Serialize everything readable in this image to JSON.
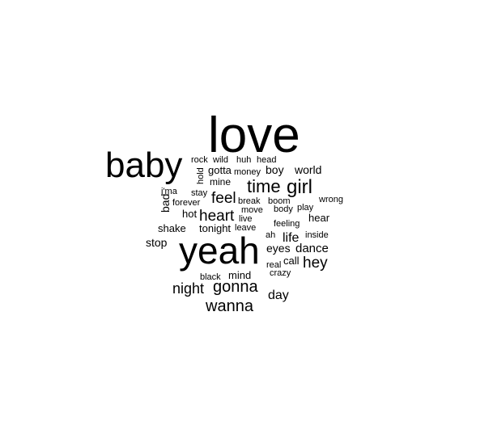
{
  "word_cloud": {
    "text_color": "#000000",
    "background": "#ffffff",
    "words": [
      {
        "text": "love",
        "weight": 10
      },
      {
        "text": "yeah",
        "weight": 8.5
      },
      {
        "text": "baby",
        "weight": 8
      },
      {
        "text": "girl",
        "weight": 4
      },
      {
        "text": "time",
        "weight": 4
      },
      {
        "text": "wanna",
        "weight": 3.3
      },
      {
        "text": "gonna",
        "weight": 3.3
      },
      {
        "text": "hey",
        "weight": 3
      },
      {
        "text": "night",
        "weight": 3
      },
      {
        "text": "heart",
        "weight": 3
      },
      {
        "text": "feel",
        "weight": 3
      },
      {
        "text": "life",
        "weight": 2.6
      },
      {
        "text": "day",
        "weight": 2.6
      },
      {
        "text": "dance",
        "weight": 2.4
      },
      {
        "text": "world",
        "weight": 2.2
      },
      {
        "text": "boy",
        "weight": 2.2
      },
      {
        "text": "bad",
        "weight": 2.2
      },
      {
        "text": "eyes",
        "weight": 2.1
      },
      {
        "text": "stop",
        "weight": 2.1
      },
      {
        "text": "shake",
        "weight": 2
      },
      {
        "text": "tonight",
        "weight": 2
      },
      {
        "text": "hot",
        "weight": 2
      },
      {
        "text": "hear",
        "weight": 2
      },
      {
        "text": "gotta",
        "weight": 2
      },
      {
        "text": "mine",
        "weight": 1.8
      },
      {
        "text": "call",
        "weight": 1.9
      },
      {
        "text": "mind",
        "weight": 1.9
      },
      {
        "text": "rock",
        "weight": 1.7
      },
      {
        "text": "wild",
        "weight": 1.7
      },
      {
        "text": "huh",
        "weight": 1.7
      },
      {
        "text": "head",
        "weight": 1.7
      },
      {
        "text": "money",
        "weight": 1.6
      },
      {
        "text": "hold",
        "weight": 1.6
      },
      {
        "text": "i'ma",
        "weight": 1.6
      },
      {
        "text": "stay",
        "weight": 1.6
      },
      {
        "text": "forever",
        "weight": 1.6
      },
      {
        "text": "break",
        "weight": 1.6
      },
      {
        "text": "boom",
        "weight": 1.6
      },
      {
        "text": "move",
        "weight": 1.6
      },
      {
        "text": "body",
        "weight": 1.6
      },
      {
        "text": "play",
        "weight": 1.6
      },
      {
        "text": "wrong",
        "weight": 1.6
      },
      {
        "text": "live",
        "weight": 1.6
      },
      {
        "text": "leave",
        "weight": 1.6
      },
      {
        "text": "feeling",
        "weight": 1.6
      },
      {
        "text": "ah",
        "weight": 1.6
      },
      {
        "text": "inside",
        "weight": 1.6
      },
      {
        "text": "real",
        "weight": 1.6
      },
      {
        "text": "crazy",
        "weight": 1.6
      },
      {
        "text": "black",
        "weight": 1.6
      }
    ]
  }
}
